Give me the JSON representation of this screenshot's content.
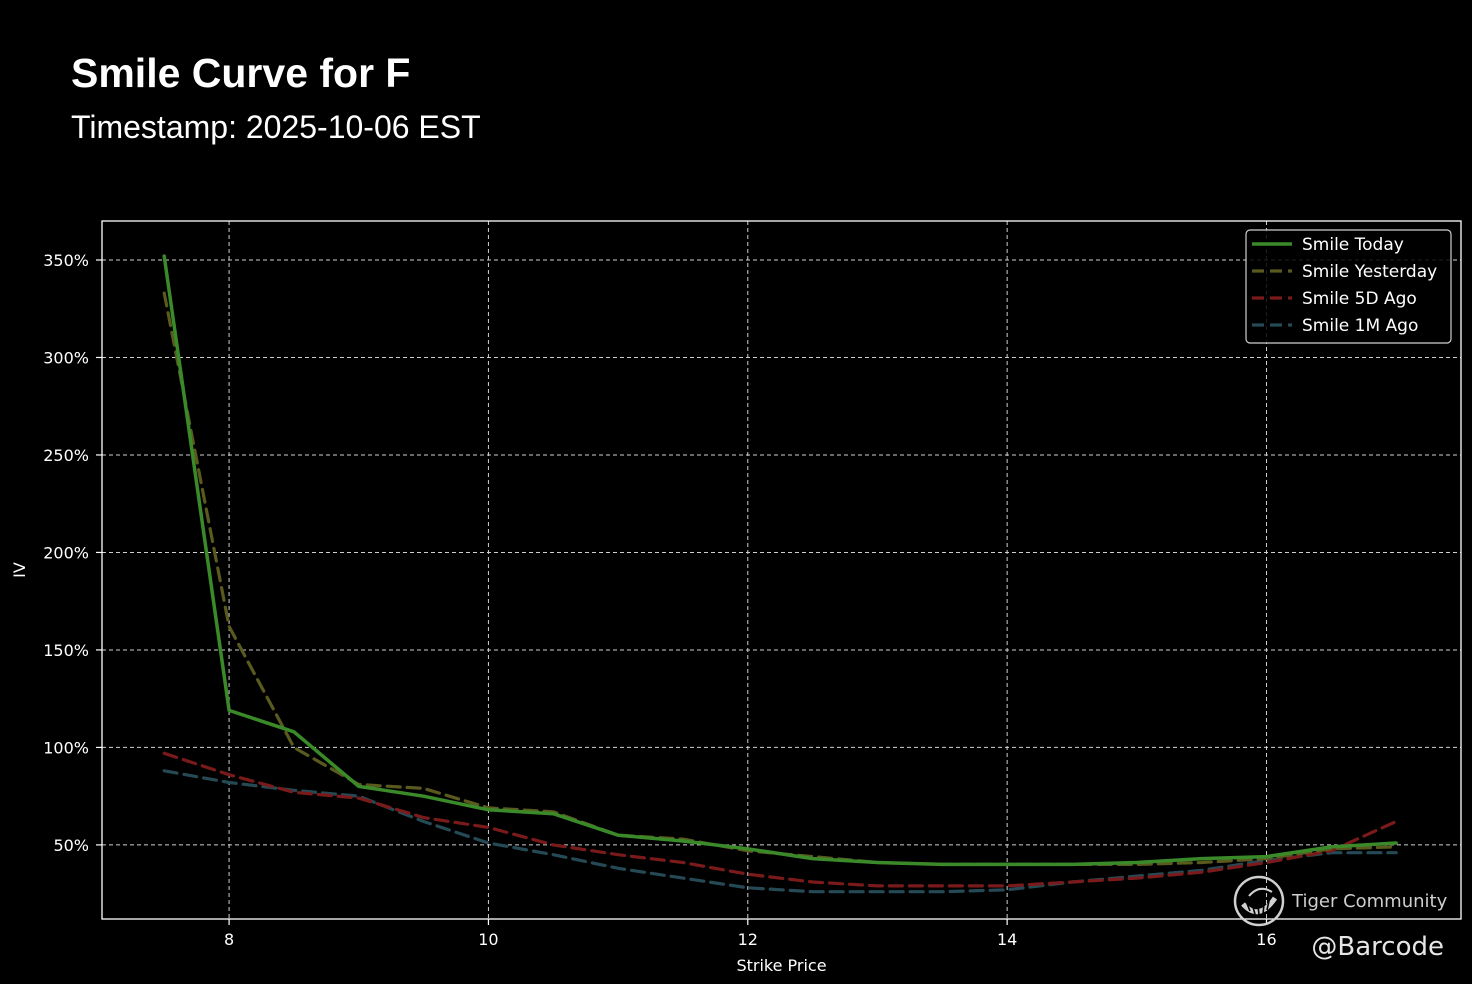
{
  "title": "Smile Curve for F",
  "subtitle": "Timestamp: 2025-10-06 EST",
  "watermark": {
    "brand": "Tiger Community",
    "handle": "@Barcode",
    "logo_icon": "tiger-logo-icon"
  },
  "chart_data": {
    "type": "line",
    "xlabel": "Strike Price",
    "ylabel": "IV",
    "xlim": [
      7.02,
      17.5
    ],
    "ylim": [
      12,
      370
    ],
    "x_ticks": [
      8,
      10,
      12,
      14,
      16
    ],
    "y_ticks": [
      50,
      100,
      150,
      200,
      250,
      300,
      350
    ],
    "y_tick_labels": [
      "50%",
      "100%",
      "150%",
      "200%",
      "250%",
      "300%",
      "350%"
    ],
    "grid": true,
    "legend_position": "top-right",
    "background": "#000000",
    "series": [
      {
        "name": "Smile Today",
        "color": "#3a8a2a",
        "style": "solid",
        "x": [
          7.5,
          8,
          8.5,
          9,
          9.5,
          10,
          10.5,
          11,
          11.5,
          12,
          12.5,
          13,
          13.5,
          14,
          14.5,
          15,
          15.5,
          16,
          16.5,
          17
        ],
        "y": [
          352,
          119,
          108,
          80,
          75,
          68,
          66,
          55,
          52,
          48,
          43,
          41,
          40,
          40,
          40,
          41,
          43,
          44,
          49,
          51
        ]
      },
      {
        "name": "Smile Yesterday",
        "color": "#5a5a1e",
        "style": "dashed",
        "x": [
          7.5,
          8,
          8.5,
          9,
          9.5,
          10,
          10.5,
          11,
          11.5,
          12,
          12.5,
          13,
          13.5,
          14,
          14.5,
          15,
          15.5,
          16,
          16.5,
          17
        ],
        "y": [
          333,
          162,
          100,
          81,
          79,
          69,
          67,
          55,
          53,
          47,
          44,
          41,
          40,
          40,
          40,
          40,
          41,
          43,
          48,
          49
        ]
      },
      {
        "name": "Smile 5D Ago",
        "color": "#7a1a1a",
        "style": "dashed",
        "x": [
          7.5,
          8,
          8.5,
          9,
          9.5,
          10,
          10.5,
          11,
          11.5,
          12,
          12.5,
          13,
          13.5,
          14,
          14.5,
          15,
          15.5,
          16,
          16.5,
          17
        ],
        "y": [
          97,
          86,
          77,
          74,
          64,
          59,
          50,
          45,
          41,
          35,
          31,
          29,
          29,
          29,
          31,
          33,
          36,
          41,
          47,
          62
        ]
      },
      {
        "name": "Smile 1M Ago",
        "color": "#254a55",
        "style": "dashed",
        "x": [
          7.5,
          8,
          8.5,
          9,
          9.5,
          10,
          10.5,
          11,
          11.5,
          12,
          12.5,
          13,
          13.5,
          14,
          14.5,
          15,
          15.5,
          16,
          16.5,
          17
        ],
        "y": [
          88,
          82,
          78,
          75,
          62,
          51,
          45,
          38,
          33,
          28,
          26,
          26,
          26,
          27,
          31,
          34,
          37,
          42,
          46,
          46
        ]
      }
    ]
  }
}
